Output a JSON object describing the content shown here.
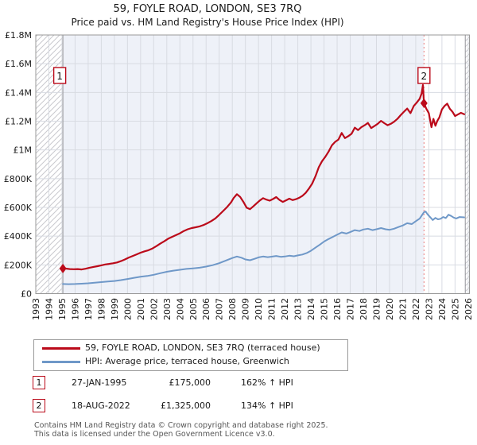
{
  "title": "59, FOYLE ROAD, LONDON, SE3 7RQ",
  "subtitle": "Price paid vs. HM Land Registry's House Price Index (HPI)",
  "chart_data": {
    "type": "line",
    "title": "59, FOYLE ROAD, LONDON, SE3 7RQ",
    "subtitle": "Price paid vs. HM Land Registry's House Price Index (HPI)",
    "y_units": "GBP thousands",
    "x_axis": {
      "min": 1993.0,
      "max": 2026.1,
      "tick_years": [
        "1993",
        "1994",
        "1995",
        "1996",
        "1997",
        "1998",
        "1999",
        "2000",
        "2001",
        "2002",
        "2003",
        "2004",
        "2005",
        "2006",
        "2007",
        "2008",
        "2009",
        "2010",
        "2011",
        "2012",
        "2013",
        "2014",
        "2015",
        "2016",
        "2017",
        "2018",
        "2019",
        "2020",
        "2021",
        "2022",
        "2023",
        "2024",
        "2025",
        "2026"
      ]
    },
    "y_axis": {
      "min": 0,
      "max": 1800,
      "tick_values": [
        0,
        200,
        400,
        600,
        800,
        1000,
        1200,
        1400,
        1600,
        1800
      ],
      "tick_labels": [
        "£0",
        "£200K",
        "£400K",
        "£600K",
        "£800K",
        "£1M",
        "£1.2M",
        "£1.4M",
        "£1.6M",
        "£1.8M"
      ]
    },
    "regions": {
      "hatched_left": [
        1993.0,
        1995.07
      ],
      "owned_shaded": [
        1995.07,
        2022.63
      ],
      "hatched_right": [
        2025.78,
        2026.1
      ]
    },
    "sale_vline_x": 2022.63,
    "colors": {
      "property_line": "#bb0a1a",
      "hpi_line": "#6f98c8",
      "sale_vline": "#e97c7c",
      "owned_bg": "#eef1f8",
      "grid": "#d8dbe2",
      "plot_border": "#999999",
      "hatch": "#c9c9ce"
    },
    "series": [
      {
        "name": "59, FOYLE ROAD, LONDON, SE3 7RQ (terraced house)",
        "color": "#bb0a1a",
        "points": [
          [
            1995.07,
            175
          ],
          [
            1995.3,
            174
          ],
          [
            1995.6,
            171
          ],
          [
            1995.9,
            170
          ],
          [
            1996.2,
            171
          ],
          [
            1996.5,
            168
          ],
          [
            1996.8,
            173
          ],
          [
            1997.1,
            180
          ],
          [
            1997.4,
            186
          ],
          [
            1997.7,
            191
          ],
          [
            1998.0,
            197
          ],
          [
            1998.3,
            203
          ],
          [
            1998.6,
            207
          ],
          [
            1998.9,
            211
          ],
          [
            1999.2,
            217
          ],
          [
            1999.5,
            226
          ],
          [
            1999.8,
            238
          ],
          [
            2000.1,
            251
          ],
          [
            2000.4,
            262
          ],
          [
            2000.7,
            273
          ],
          [
            2001.0,
            285
          ],
          [
            2001.3,
            294
          ],
          [
            2001.6,
            302
          ],
          [
            2001.9,
            314
          ],
          [
            2002.2,
            330
          ],
          [
            2002.5,
            348
          ],
          [
            2002.8,
            364
          ],
          [
            2003.1,
            382
          ],
          [
            2003.4,
            395
          ],
          [
            2003.7,
            407
          ],
          [
            2004.0,
            420
          ],
          [
            2004.3,
            436
          ],
          [
            2004.6,
            448
          ],
          [
            2004.9,
            456
          ],
          [
            2005.2,
            462
          ],
          [
            2005.5,
            468
          ],
          [
            2005.8,
            477
          ],
          [
            2006.1,
            490
          ],
          [
            2006.4,
            505
          ],
          [
            2006.7,
            523
          ],
          [
            2007.0,
            548
          ],
          [
            2007.3,
            575
          ],
          [
            2007.6,
            602
          ],
          [
            2007.9,
            635
          ],
          [
            2008.1,
            665
          ],
          [
            2008.35,
            692
          ],
          [
            2008.6,
            673
          ],
          [
            2008.85,
            638
          ],
          [
            2009.1,
            598
          ],
          [
            2009.35,
            588
          ],
          [
            2009.6,
            607
          ],
          [
            2009.85,
            628
          ],
          [
            2010.1,
            648
          ],
          [
            2010.35,
            664
          ],
          [
            2010.6,
            654
          ],
          [
            2010.85,
            647
          ],
          [
            2011.1,
            658
          ],
          [
            2011.35,
            672
          ],
          [
            2011.6,
            652
          ],
          [
            2011.85,
            638
          ],
          [
            2012.1,
            649
          ],
          [
            2012.35,
            661
          ],
          [
            2012.6,
            651
          ],
          [
            2012.85,
            657
          ],
          [
            2013.1,
            667
          ],
          [
            2013.35,
            681
          ],
          [
            2013.6,
            701
          ],
          [
            2013.85,
            731
          ],
          [
            2014.1,
            766
          ],
          [
            2014.35,
            818
          ],
          [
            2014.6,
            880
          ],
          [
            2014.85,
            922
          ],
          [
            2015.1,
            952
          ],
          [
            2015.35,
            988
          ],
          [
            2015.6,
            1032
          ],
          [
            2015.85,
            1056
          ],
          [
            2016.1,
            1072
          ],
          [
            2016.35,
            1118
          ],
          [
            2016.6,
            1082
          ],
          [
            2016.85,
            1096
          ],
          [
            2017.1,
            1112
          ],
          [
            2017.35,
            1155
          ],
          [
            2017.6,
            1138
          ],
          [
            2017.85,
            1158
          ],
          [
            2018.1,
            1172
          ],
          [
            2018.35,
            1188
          ],
          [
            2018.6,
            1152
          ],
          [
            2018.85,
            1166
          ],
          [
            2019.1,
            1182
          ],
          [
            2019.35,
            1202
          ],
          [
            2019.6,
            1186
          ],
          [
            2019.85,
            1172
          ],
          [
            2020.1,
            1182
          ],
          [
            2020.35,
            1196
          ],
          [
            2020.6,
            1216
          ],
          [
            2020.85,
            1242
          ],
          [
            2021.1,
            1266
          ],
          [
            2021.35,
            1288
          ],
          [
            2021.6,
            1256
          ],
          [
            2021.85,
            1306
          ],
          [
            2022.1,
            1332
          ],
          [
            2022.3,
            1356
          ],
          [
            2022.45,
            1392
          ],
          [
            2022.55,
            1452
          ],
          [
            2022.63,
            1325
          ],
          [
            2022.8,
            1288
          ],
          [
            2023.0,
            1256
          ],
          [
            2023.2,
            1158
          ],
          [
            2023.35,
            1216
          ],
          [
            2023.5,
            1168
          ],
          [
            2023.65,
            1202
          ],
          [
            2023.8,
            1226
          ],
          [
            2024.0,
            1282
          ],
          [
            2024.2,
            1306
          ],
          [
            2024.4,
            1322
          ],
          [
            2024.6,
            1286
          ],
          [
            2024.8,
            1266
          ],
          [
            2025.0,
            1236
          ],
          [
            2025.2,
            1246
          ],
          [
            2025.45,
            1258
          ],
          [
            2025.7,
            1248
          ]
        ]
      },
      {
        "name": "HPI: Average price, terraced house, Greenwich",
        "color": "#6f98c8",
        "points": [
          [
            1995.07,
            67
          ],
          [
            1995.5,
            66
          ],
          [
            1996.0,
            67
          ],
          [
            1996.5,
            69
          ],
          [
            1997.0,
            72
          ],
          [
            1997.5,
            76
          ],
          [
            1998.0,
            80
          ],
          [
            1998.5,
            84
          ],
          [
            1999.0,
            88
          ],
          [
            1999.5,
            94
          ],
          [
            2000.0,
            102
          ],
          [
            2000.5,
            110
          ],
          [
            2001.0,
            117
          ],
          [
            2001.5,
            123
          ],
          [
            2002.0,
            131
          ],
          [
            2002.5,
            142
          ],
          [
            2003.0,
            152
          ],
          [
            2003.5,
            160
          ],
          [
            2004.0,
            166
          ],
          [
            2004.5,
            172
          ],
          [
            2005.0,
            176
          ],
          [
            2005.5,
            180
          ],
          [
            2006.0,
            188
          ],
          [
            2006.5,
            198
          ],
          [
            2007.0,
            212
          ],
          [
            2007.5,
            230
          ],
          [
            2008.0,
            248
          ],
          [
            2008.35,
            258
          ],
          [
            2008.7,
            250
          ],
          [
            2009.0,
            238
          ],
          [
            2009.35,
            232
          ],
          [
            2009.7,
            242
          ],
          [
            2010.0,
            252
          ],
          [
            2010.35,
            258
          ],
          [
            2010.7,
            254
          ],
          [
            2011.0,
            257
          ],
          [
            2011.35,
            262
          ],
          [
            2011.7,
            256
          ],
          [
            2012.0,
            258
          ],
          [
            2012.35,
            264
          ],
          [
            2012.7,
            260
          ],
          [
            2013.0,
            266
          ],
          [
            2013.35,
            272
          ],
          [
            2013.7,
            283
          ],
          [
            2014.0,
            298
          ],
          [
            2014.35,
            320
          ],
          [
            2014.7,
            342
          ],
          [
            2015.0,
            362
          ],
          [
            2015.35,
            380
          ],
          [
            2015.7,
            396
          ],
          [
            2016.0,
            410
          ],
          [
            2016.35,
            426
          ],
          [
            2016.7,
            418
          ],
          [
            2017.0,
            428
          ],
          [
            2017.35,
            442
          ],
          [
            2017.7,
            436
          ],
          [
            2018.0,
            446
          ],
          [
            2018.35,
            452
          ],
          [
            2018.7,
            442
          ],
          [
            2019.0,
            448
          ],
          [
            2019.35,
            456
          ],
          [
            2019.7,
            448
          ],
          [
            2020.0,
            444
          ],
          [
            2020.35,
            452
          ],
          [
            2020.7,
            464
          ],
          [
            2021.0,
            474
          ],
          [
            2021.35,
            490
          ],
          [
            2021.7,
            484
          ],
          [
            2022.0,
            504
          ],
          [
            2022.3,
            522
          ],
          [
            2022.63,
            566
          ],
          [
            2022.75,
            572
          ],
          [
            2022.9,
            552
          ],
          [
            2023.1,
            532
          ],
          [
            2023.3,
            512
          ],
          [
            2023.5,
            527
          ],
          [
            2023.7,
            517
          ],
          [
            2023.9,
            521
          ],
          [
            2024.1,
            533
          ],
          [
            2024.3,
            526
          ],
          [
            2024.5,
            549
          ],
          [
            2024.7,
            541
          ],
          [
            2024.9,
            529
          ],
          [
            2025.1,
            523
          ],
          [
            2025.35,
            533
          ],
          [
            2025.7,
            531
          ]
        ]
      }
    ],
    "sales": [
      {
        "label": "1",
        "x": 1995.07,
        "y": 175
      },
      {
        "label": "2",
        "x": 2022.63,
        "y": 1325
      }
    ]
  },
  "legend": [
    {
      "label": "59, FOYLE ROAD, LONDON, SE3 7RQ (terraced house)"
    },
    {
      "label": "HPI: Average price, terraced house, Greenwich"
    }
  ],
  "transactions": [
    {
      "num": "1",
      "date": "27-JAN-1995",
      "price": "£175,000",
      "hpi": "162% ↑ HPI"
    },
    {
      "num": "2",
      "date": "18-AUG-2022",
      "price": "£1,325,000",
      "hpi": "134% ↑ HPI"
    }
  ],
  "footer": {
    "line1": "Contains HM Land Registry data © Crown copyright and database right 2025.",
    "line2": "This data is licensed under the Open Government Licence v3.0."
  }
}
